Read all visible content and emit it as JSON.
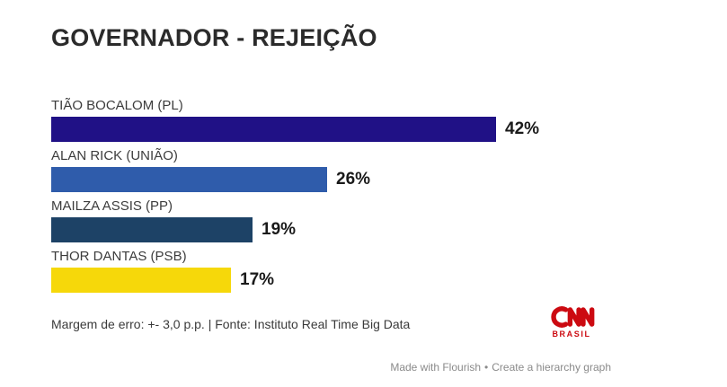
{
  "title": "GOVERNADOR - REJEIÇÃO",
  "chart_data": {
    "type": "bar",
    "orientation": "horizontal",
    "title": "GOVERNADOR - REJEIÇÃO",
    "categories": [
      "TIÃO BOCALOM (PL)",
      "ALAN RICK (UNIÃO)",
      "MAILZA ASSIS (PP)",
      "THOR DANTAS (PSB)"
    ],
    "values": [
      42,
      26,
      19,
      17
    ],
    "value_labels": [
      "42%",
      "26%",
      "19%",
      "17%"
    ],
    "bar_colors": [
      "#201186",
      "#2f5cab",
      "#1d4266",
      "#f6d80a"
    ],
    "xlabel": "",
    "ylabel": "",
    "xlim": [
      0,
      55
    ],
    "grid": false,
    "legend": false,
    "source_note": "Margem de erro: +- 3,0 p.p. | Fonte: Instituto Real Time Big Data"
  },
  "footer": {
    "source_text": "Margem de erro: +- 3,0 p.p. | Fonte: Instituto Real Time Big Data"
  },
  "branding": {
    "name": "CNN Brasil",
    "logo_text": "CNN",
    "logo_subtext": "BRASIL",
    "logo_color": "#cc0a11"
  },
  "attribution": {
    "made_with": "Made with Flourish",
    "separator": "•",
    "cta": "Create a hierarchy graph",
    "color": "#8a8a8a"
  }
}
